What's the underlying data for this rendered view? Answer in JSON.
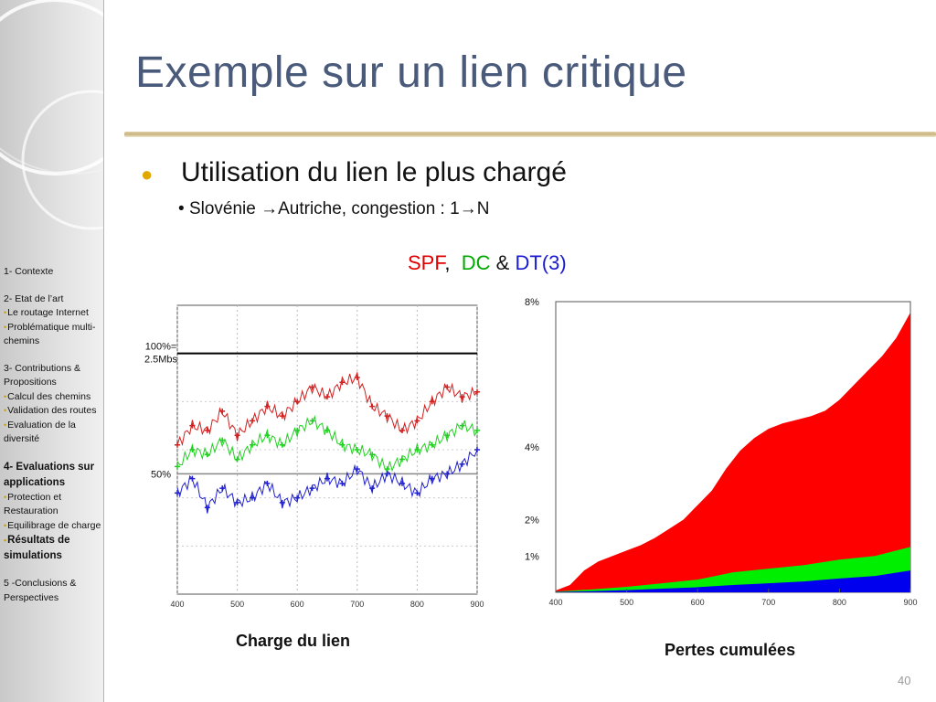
{
  "slide": {
    "title": "Exemple sur un lien critique",
    "bullet_main": "Utilisation du lien le plus chargé",
    "bullet_sub_prefix": "Slovénie ",
    "bullet_sub_arrow": "→",
    "bullet_sub_middle": "Autriche,  congestion : 1",
    "bullet_sub_arrow2": "→",
    "bullet_sub_suffix": "N",
    "page_number": "40"
  },
  "legend": {
    "spf": "SPF",
    "sep1": ",",
    "dc": "DC",
    "amp": "&",
    "dt": "DT(3)",
    "colors": {
      "spf": "#e00000",
      "dc": "#00aa00",
      "dt": "#1a1ad0",
      "amp": "#111111"
    }
  },
  "sidebar": {
    "items": [
      {
        "text": "1- Contexte",
        "style": "sec"
      },
      {
        "text": "2- Etat de l’art",
        "style": "sec"
      },
      {
        "text": "Le routage Internet",
        "style": "sub"
      },
      {
        "text": "Problématique multi-chemins",
        "style": "sub"
      },
      {
        "text": "3- Contributions & Propositions",
        "style": "sec"
      },
      {
        "text": "Calcul des chemins",
        "style": "sub"
      },
      {
        "text": "Validation des routes",
        "style": "sub"
      },
      {
        "text": "Evaluation de la diversité",
        "style": "sub"
      },
      {
        "text": "4- Evaluations sur applications",
        "style": "bold"
      },
      {
        "text": "Protection et Restauration",
        "style": "sub"
      },
      {
        "text": "Equilibrage de charge",
        "style": "sub"
      },
      {
        "text": "Résultats de simulations",
        "style": "subbold"
      },
      {
        "text": "5 -Conclusions & Perspectives",
        "style": "sec"
      }
    ]
  },
  "chart_data": [
    {
      "type": "scatter",
      "title": "",
      "caption": "Charge du lien",
      "xlabel": "",
      "ylabel": "",
      "xlim": [
        400,
        900
      ],
      "ylim": [
        0,
        120
      ],
      "x_ticks": [
        "400",
        "500",
        "600",
        "700",
        "800",
        "900"
      ],
      "y_annotations": [
        {
          "label_line1": "100%=",
          "label_line2": "2.5Mbs",
          "y": 100
        },
        {
          "label_line1": "50%",
          "label_line2": "",
          "y": 50
        }
      ],
      "series": [
        {
          "color": "#d02020",
          "x": [
            400,
            425,
            450,
            475,
            500,
            525,
            550,
            575,
            600,
            625,
            650,
            675,
            700,
            725,
            750,
            775,
            800,
            825,
            850,
            875,
            900
          ],
          "y": [
            62,
            70,
            68,
            76,
            66,
            72,
            78,
            74,
            80,
            86,
            82,
            88,
            90,
            78,
            74,
            68,
            72,
            80,
            86,
            82,
            84
          ]
        },
        {
          "color": "#20d020",
          "x": [
            400,
            425,
            450,
            475,
            500,
            525,
            550,
            575,
            600,
            625,
            650,
            675,
            700,
            725,
            750,
            775,
            800,
            825,
            850,
            875,
            900
          ],
          "y": [
            53,
            60,
            58,
            64,
            56,
            62,
            66,
            62,
            68,
            72,
            68,
            62,
            60,
            58,
            52,
            56,
            60,
            62,
            66,
            70,
            68
          ]
        },
        {
          "color": "#2020d0",
          "x": [
            400,
            425,
            450,
            475,
            500,
            525,
            550,
            575,
            600,
            625,
            650,
            675,
            700,
            725,
            750,
            775,
            800,
            825,
            850,
            875,
            900
          ],
          "y": [
            42,
            48,
            36,
            44,
            38,
            40,
            46,
            38,
            40,
            44,
            48,
            46,
            52,
            44,
            50,
            46,
            42,
            48,
            50,
            54,
            60
          ]
        }
      ]
    },
    {
      "type": "area",
      "title": "",
      "caption": "Pertes cumulées",
      "xlabel": "",
      "ylabel": "",
      "xlim": [
        400,
        900
      ],
      "ylim": [
        0,
        8
      ],
      "x_ticks": [
        "400",
        "500",
        "600",
        "700",
        "800",
        "900"
      ],
      "y_ticks": [
        {
          "label": "8%",
          "value": 8
        },
        {
          "label": "4%",
          "value": 4
        },
        {
          "label": "2%",
          "value": 2
        },
        {
          "label": "1%",
          "value": 1
        }
      ],
      "series": [
        {
          "color": "#ff0000",
          "x": [
            400,
            420,
            440,
            460,
            480,
            500,
            520,
            540,
            560,
            580,
            600,
            620,
            640,
            660,
            680,
            700,
            720,
            740,
            760,
            780,
            800,
            820,
            840,
            860,
            880,
            900
          ],
          "y": [
            0.05,
            0.2,
            0.6,
            0.85,
            1.0,
            1.15,
            1.3,
            1.5,
            1.75,
            2.0,
            2.4,
            2.8,
            3.4,
            3.9,
            4.25,
            4.5,
            4.65,
            4.75,
            4.85,
            5.0,
            5.3,
            5.7,
            6.1,
            6.5,
            7.0,
            7.7
          ]
        },
        {
          "color": "#00ee00",
          "x": [
            400,
            450,
            500,
            550,
            600,
            650,
            700,
            750,
            800,
            850,
            900
          ],
          "y": [
            0.02,
            0.08,
            0.15,
            0.25,
            0.35,
            0.55,
            0.65,
            0.75,
            0.9,
            1.0,
            1.25
          ]
        },
        {
          "color": "#0000ee",
          "x": [
            400,
            450,
            500,
            550,
            600,
            650,
            700,
            750,
            800,
            850,
            900
          ],
          "y": [
            0.01,
            0.03,
            0.06,
            0.1,
            0.14,
            0.2,
            0.25,
            0.3,
            0.38,
            0.45,
            0.6
          ]
        }
      ]
    }
  ]
}
